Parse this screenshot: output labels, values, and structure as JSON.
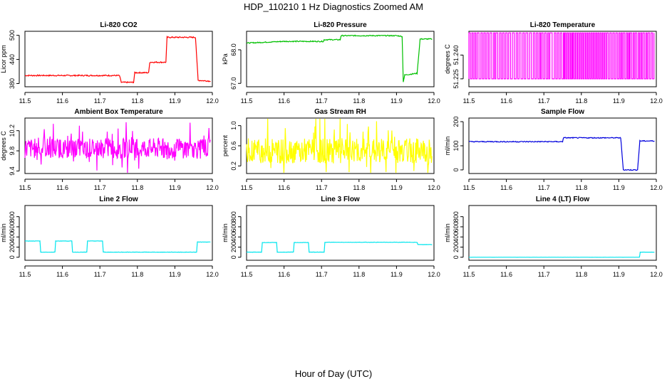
{
  "page": {
    "title": "HDP_110210  1 Hz Diagnostics Zoomed AM",
    "xlabel": "Hour of Day (UTC)"
  },
  "chart_data": [
    {
      "type": "line",
      "title": "Li-820 CO2",
      "ylabel": "Licor ppm",
      "color": "#ff0000",
      "xlim": [
        11.5,
        12.0
      ],
      "ylim": [
        372,
        510
      ],
      "xticks": [
        "11.5",
        "11.6",
        "11.7",
        "11.8",
        "11.9",
        "12.0"
      ],
      "yticks": [
        {
          "v": 380,
          "label": "380"
        },
        {
          "v": 440,
          "label": "440"
        },
        {
          "v": 500,
          "label": "500"
        }
      ],
      "noise": 1.5,
      "segments": [
        [
          11.5,
          400
        ],
        [
          11.752,
          400
        ],
        [
          11.757,
          383
        ],
        [
          11.79,
          383
        ],
        [
          11.793,
          407
        ],
        [
          11.83,
          407
        ],
        [
          11.833,
          433
        ],
        [
          11.876,
          433
        ],
        [
          11.879,
          495
        ],
        [
          11.955,
          495
        ],
        [
          11.962,
          388
        ],
        [
          11.995,
          386
        ]
      ]
    },
    {
      "type": "line",
      "title": "Li-820 Pressure",
      "ylabel": "kPa",
      "color": "#00c000",
      "xlim": [
        11.5,
        12.0
      ],
      "ylim": [
        66.9,
        68.55
      ],
      "xticks": [
        "11.5",
        "11.6",
        "11.7",
        "11.8",
        "11.9",
        "12.0"
      ],
      "yticks": [
        {
          "v": 67.0,
          "label": "67.0"
        },
        {
          "v": 68.0,
          "label": "68.0"
        }
      ],
      "noise": 0.015,
      "segments": [
        [
          11.5,
          68.2
        ],
        [
          11.6,
          68.25
        ],
        [
          11.705,
          68.25
        ],
        [
          11.707,
          68.3
        ],
        [
          11.75,
          68.3
        ],
        [
          11.752,
          68.42
        ],
        [
          11.9,
          68.42
        ],
        [
          11.915,
          68.4
        ],
        [
          11.918,
          67.05
        ],
        [
          11.922,
          67.25
        ],
        [
          11.955,
          67.3
        ],
        [
          11.963,
          68.32
        ],
        [
          11.995,
          68.32
        ]
      ]
    },
    {
      "type": "line",
      "title": "Li-820 Temperature",
      "ylabel": "degrees C",
      "color": "#ff00ff",
      "xlim": [
        11.5,
        12.0
      ],
      "ylim": [
        51.22,
        51.255
      ],
      "xticks": [
        "11.5",
        "11.6",
        "11.7",
        "11.8",
        "11.9",
        "12.0"
      ],
      "yticks": [
        {
          "v": 51.225,
          "label": "51.225"
        },
        {
          "v": 51.24,
          "label": "51.240"
        }
      ],
      "binary_levels": [
        51.225,
        51.254
      ],
      "transitions": [
        11.5,
        11.508,
        11.515,
        11.522,
        11.532,
        11.54,
        11.548,
        11.556,
        11.566,
        11.572,
        11.582,
        11.59,
        11.598,
        11.606,
        11.616,
        11.626,
        11.634,
        11.644,
        11.652,
        11.662,
        11.672,
        11.68,
        11.688,
        11.694,
        11.702,
        11.71,
        11.716,
        11.728,
        11.736,
        11.744,
        11.752,
        11.756,
        11.762,
        11.768,
        11.774,
        11.778,
        11.784,
        11.79,
        11.796,
        11.802,
        11.808,
        11.814,
        11.82,
        11.826,
        11.832,
        11.838,
        11.844,
        11.85,
        11.856,
        11.862,
        11.868,
        11.876,
        11.884,
        11.892,
        11.9,
        11.906,
        11.912,
        11.92,
        11.926,
        11.93,
        11.938,
        11.944,
        11.952,
        11.958,
        11.964,
        11.972,
        11.978,
        11.986,
        11.994
      ]
    },
    {
      "type": "line",
      "title": "Ambient Box Temperature",
      "ylabel": "degrees C",
      "color": "#ff00ff",
      "xlim": [
        11.5,
        12.0
      ],
      "ylim": [
        9.35,
        10.45
      ],
      "xticks": [
        "11.5",
        "11.6",
        "11.7",
        "11.8",
        "11.9",
        "12.0"
      ],
      "yticks": [
        {
          "v": 9.4,
          "label": "9.4"
        },
        {
          "v": 9.8,
          "label": "9.8"
        },
        {
          "v": 10.2,
          "label": "10.2"
        }
      ],
      "random_band": {
        "center": 9.85,
        "spread": 0.2,
        "spike": 0.4
      }
    },
    {
      "type": "line",
      "title": "Gas Stream RH",
      "ylabel": "percent",
      "color": "#ffff00",
      "xlim": [
        11.5,
        12.0
      ],
      "ylim": [
        0.05,
        1.15
      ],
      "xticks": [
        "11.5",
        "11.6",
        "11.7",
        "11.8",
        "11.9",
        "12.0"
      ],
      "yticks": [
        {
          "v": 0.2,
          "label": "0.2"
        },
        {
          "v": 0.6,
          "label": "0.6"
        },
        {
          "v": 1.0,
          "label": "1.0"
        }
      ],
      "random_band": {
        "center": 0.5,
        "spread": 0.25,
        "spike": 0.55
      }
    },
    {
      "type": "line",
      "title": "Sample Flow",
      "ylabel": "ml/min",
      "color": "#0000dd",
      "xlim": [
        11.5,
        12.0
      ],
      "ylim": [
        -15,
        215
      ],
      "xticks": [
        "11.5",
        "11.6",
        "11.7",
        "11.8",
        "11.9",
        "12.0"
      ],
      "yticks": [
        {
          "v": 0,
          "label": "0"
        },
        {
          "v": 100,
          "label": "100"
        },
        {
          "v": 200,
          "label": "200"
        }
      ],
      "noise": 2,
      "segments": [
        [
          11.5,
          117
        ],
        [
          11.75,
          117
        ],
        [
          11.752,
          133
        ],
        [
          11.905,
          133
        ],
        [
          11.912,
          0
        ],
        [
          11.95,
          0
        ],
        [
          11.956,
          120
        ],
        [
          11.995,
          120
        ]
      ]
    },
    {
      "type": "line",
      "title": "Line 2 Flow",
      "ylabel": "ml/min",
      "color": "#00e5ee",
      "xlim": [
        11.5,
        12.0
      ],
      "ylim": [
        -60,
        1020
      ],
      "xticks": [
        "11.5",
        "11.6",
        "11.7",
        "11.8",
        "11.9",
        "12.0"
      ],
      "yticks": [
        {
          "v": 0,
          "label": "0"
        },
        {
          "v": 200,
          "label": "200"
        },
        {
          "v": 400,
          "label": "400"
        },
        {
          "v": 600,
          "label": "600"
        },
        {
          "v": 800,
          "label": "800"
        }
      ],
      "noise": 3,
      "segments": [
        [
          11.5,
          320
        ],
        [
          11.54,
          320
        ],
        [
          11.542,
          100
        ],
        [
          11.58,
          100
        ],
        [
          11.582,
          320
        ],
        [
          11.625,
          320
        ],
        [
          11.627,
          100
        ],
        [
          11.665,
          100
        ],
        [
          11.667,
          320
        ],
        [
          11.707,
          320
        ],
        [
          11.709,
          100
        ],
        [
          11.958,
          100
        ],
        [
          11.96,
          300
        ],
        [
          11.995,
          300
        ]
      ]
    },
    {
      "type": "line",
      "title": "Line 3 Flow",
      "ylabel": "ml/min",
      "color": "#00e5ee",
      "xlim": [
        11.5,
        12.0
      ],
      "ylim": [
        -60,
        1020
      ],
      "xticks": [
        "11.5",
        "11.6",
        "11.7",
        "11.8",
        "11.9",
        "12.0"
      ],
      "yticks": [
        {
          "v": 0,
          "label": "0"
        },
        {
          "v": 200,
          "label": "200"
        },
        {
          "v": 400,
          "label": "400"
        },
        {
          "v": 600,
          "label": "600"
        },
        {
          "v": 800,
          "label": "800"
        }
      ],
      "noise": 3,
      "segments": [
        [
          11.5,
          100
        ],
        [
          11.54,
          100
        ],
        [
          11.542,
          290
        ],
        [
          11.58,
          290
        ],
        [
          11.582,
          100
        ],
        [
          11.625,
          100
        ],
        [
          11.627,
          290
        ],
        [
          11.665,
          290
        ],
        [
          11.667,
          100
        ],
        [
          11.707,
          100
        ],
        [
          11.709,
          295
        ],
        [
          11.955,
          295
        ],
        [
          11.957,
          250
        ],
        [
          11.995,
          250
        ]
      ]
    },
    {
      "type": "line",
      "title": "Line 4 (LT) Flow",
      "ylabel": "ml/min",
      "color": "#00e5ee",
      "xlim": [
        11.5,
        12.0
      ],
      "ylim": [
        -60,
        1020
      ],
      "xticks": [
        "11.5",
        "11.6",
        "11.7",
        "11.8",
        "11.9",
        "12.0"
      ],
      "yticks": [
        {
          "v": 0,
          "label": "0"
        },
        {
          "v": 200,
          "label": "200"
        },
        {
          "v": 400,
          "label": "400"
        },
        {
          "v": 600,
          "label": "600"
        },
        {
          "v": 800,
          "label": "800"
        }
      ],
      "noise": 1,
      "segments": [
        [
          11.5,
          0
        ],
        [
          11.955,
          0
        ],
        [
          11.957,
          100
        ],
        [
          11.995,
          100
        ]
      ]
    }
  ]
}
